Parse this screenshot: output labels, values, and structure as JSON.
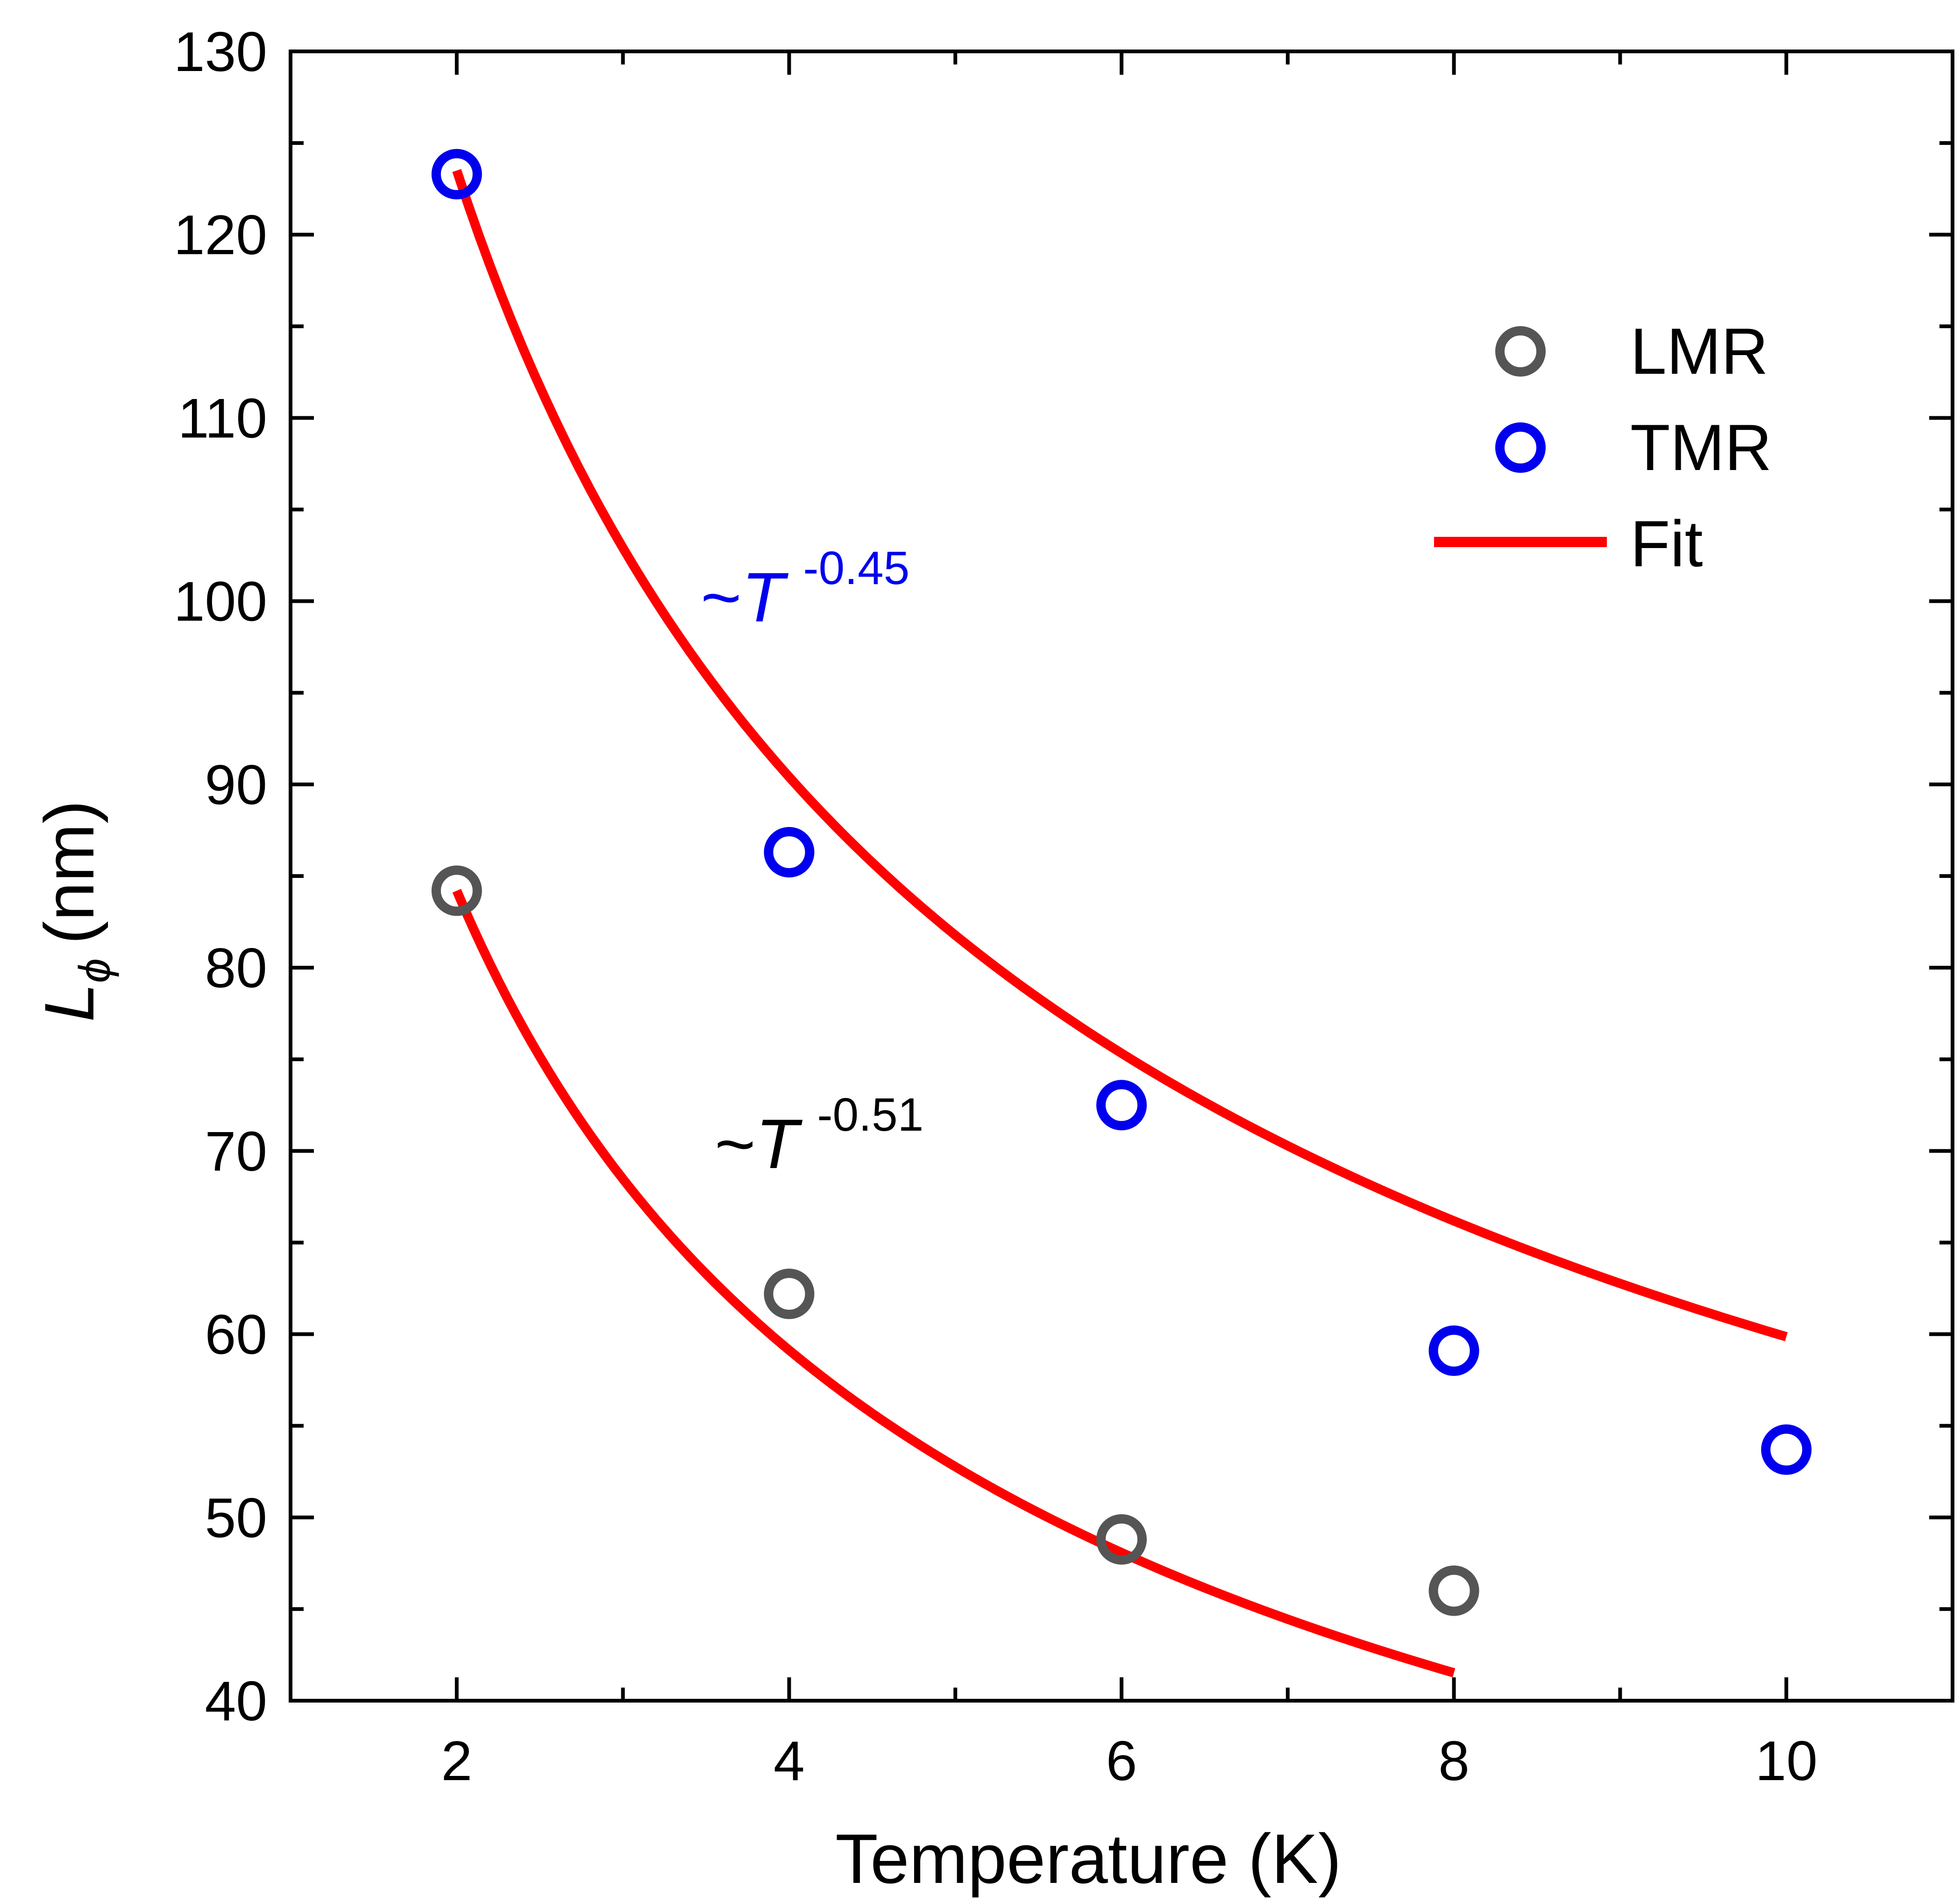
{
  "chart_data": {
    "type": "scatter",
    "xlabel": "Temperature (K)",
    "ylabel_main": "L",
    "ylabel_sub": "ϕ",
    "ylabel_unit": "(nm)",
    "xlim": [
      1,
      11
    ],
    "ylim": [
      40,
      130
    ],
    "x_major_ticks": [
      2,
      4,
      6,
      8,
      10
    ],
    "x_tick_labels": [
      "2",
      "4",
      "6",
      "8",
      "10"
    ],
    "x_minor_ticks": [
      3,
      5,
      7,
      9
    ],
    "y_major_ticks": [
      40,
      50,
      60,
      70,
      80,
      90,
      100,
      110,
      120,
      130
    ],
    "y_tick_labels": [
      "40",
      "50",
      "60",
      "70",
      "80",
      "90",
      "100",
      "110",
      "120",
      "130"
    ],
    "y_minor_ticks": [
      45,
      55,
      65,
      75,
      85,
      95,
      105,
      115,
      125
    ],
    "series": [
      {
        "name": "LMR",
        "marker": "open-circle",
        "color": "#555555",
        "x": [
          2,
          4,
          6,
          8
        ],
        "y": [
          84.2,
          62.2,
          48.8,
          46.0
        ]
      },
      {
        "name": "TMR",
        "marker": "open-circle",
        "color": "#0000ee",
        "x": [
          2,
          4,
          6,
          8,
          10
        ],
        "y": [
          123.3,
          86.3,
          72.5,
          59.1,
          53.7
        ]
      }
    ],
    "fits": [
      {
        "name": "Fit",
        "of": "LMR",
        "color": "#ff0000",
        "x_range": [
          2,
          8
        ],
        "prefactor": 84.2,
        "exponent": -0.51
      },
      {
        "name": "Fit",
        "of": "TMR",
        "color": "#ff0000",
        "x_range": [
          2,
          10
        ],
        "prefactor": 123.5,
        "exponent": -0.45
      }
    ],
    "annotations": [
      {
        "prefix": "~",
        "var": "T",
        "exp": "-0.45",
        "color": "#0000ee",
        "near": "TMR curve"
      },
      {
        "prefix": "~",
        "var": "T",
        "exp": "-0.51",
        "color": "#000000",
        "near": "LMR curve"
      }
    ],
    "legend": {
      "placement": "top-right",
      "entries": [
        {
          "label": "LMR",
          "kind": "marker",
          "color": "#555555"
        },
        {
          "label": "TMR",
          "kind": "marker",
          "color": "#0000ee"
        },
        {
          "label": "Fit",
          "kind": "line",
          "color": "#ff0000"
        }
      ]
    }
  }
}
